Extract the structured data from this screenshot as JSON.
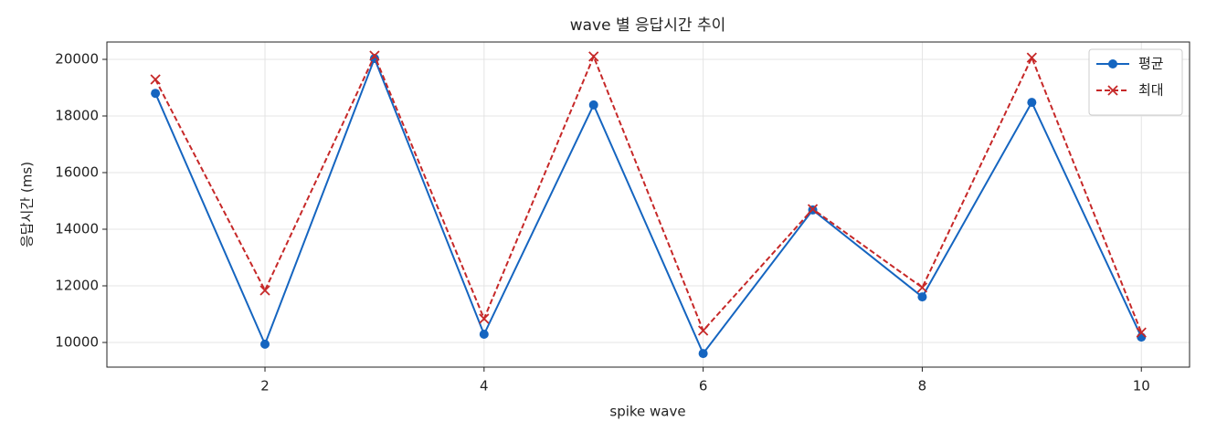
{
  "chart_data": {
    "type": "line",
    "title": "wave 별 응답시간 추이",
    "x_label": "spike wave",
    "y_label": "응답시간 (ms)",
    "x": [
      1,
      2,
      3,
      4,
      5,
      6,
      7,
      8,
      9,
      10
    ],
    "series": [
      {
        "name": "평균",
        "color": "#1565c0",
        "marker": "o",
        "linestyle": "solid",
        "values": [
          18800,
          9940,
          20030,
          10290,
          18390,
          9610,
          14680,
          11610,
          18480,
          10190
        ]
      },
      {
        "name": "최대",
        "color": "#c62828",
        "marker": "x",
        "linestyle": "dashed",
        "values": [
          19290,
          11840,
          20130,
          10840,
          20100,
          10420,
          14710,
          11940,
          20060,
          10350
        ]
      }
    ],
    "xlim": [
      0.557,
      10.44
    ],
    "ylim": [
      9129,
      20613
    ],
    "xticks": [
      2,
      4,
      6,
      8,
      10
    ],
    "yticks": [
      10000,
      12000,
      14000,
      16000,
      18000,
      20000
    ],
    "grid": true,
    "legend": "upper right"
  }
}
